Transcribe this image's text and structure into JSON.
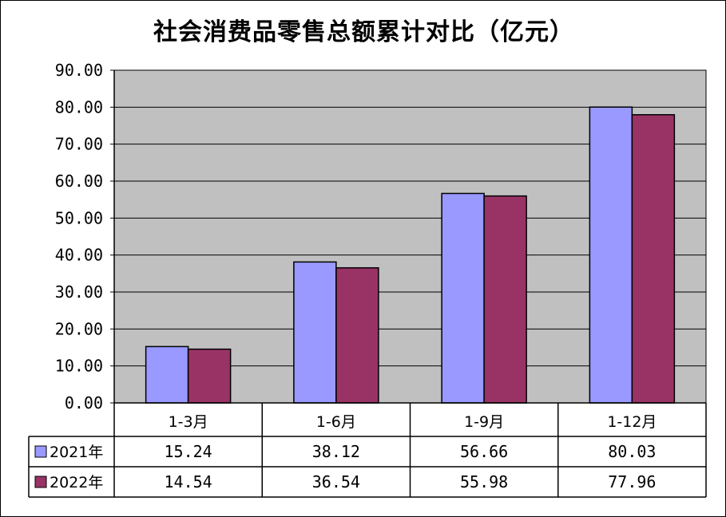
{
  "chart_data": {
    "type": "bar",
    "title": "社会消费品零售总额累计对比（亿元）",
    "categories": [
      "1-3月",
      "1-6月",
      "1-9月",
      "1-12月"
    ],
    "series": [
      {
        "name": "2021年",
        "values": [
          15.24,
          38.12,
          56.66,
          80.03
        ],
        "color": "#9999FF"
      },
      {
        "name": "2022年",
        "values": [
          14.54,
          36.54,
          55.98,
          77.96
        ],
        "color": "#993366"
      }
    ],
    "value_labels": [
      [
        "15.24",
        "38.12",
        "56.66",
        "80.03"
      ],
      [
        "14.54",
        "36.54",
        "55.98",
        "77.96"
      ]
    ],
    "ylim": [
      0,
      90
    ],
    "yticks": [
      "0.00",
      "10.00",
      "20.00",
      "30.00",
      "40.00",
      "50.00",
      "60.00",
      "70.00",
      "80.00",
      "90.00"
    ],
    "xlabel": "",
    "ylabel": "",
    "grid": true,
    "plot_background": "#C0C0C0",
    "legend": "data-table"
  }
}
